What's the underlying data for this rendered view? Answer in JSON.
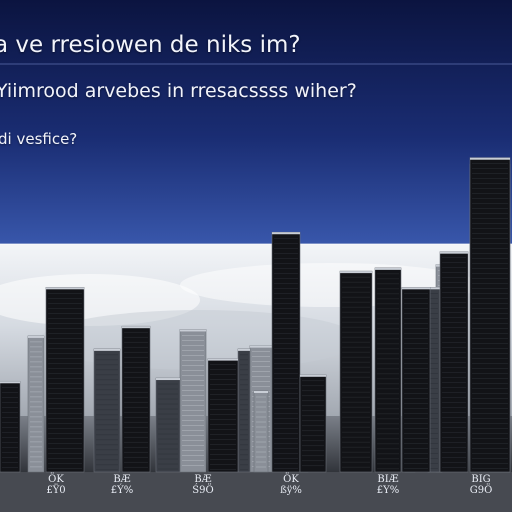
{
  "title": "a ve rresiowen de niks im?",
  "subtitle": "Yiimrood arvebes in rresacssss wiher?",
  "note": "di vesfice?",
  "colors": {
    "sky_top": "#0b1440",
    "sky_mid": "#27449a",
    "horizon": "#e6ebf2",
    "bar_dark": "#121317",
    "bar_mid": "#3a3e46",
    "bar_light": "#8a8f98"
  },
  "chart_data": {
    "type": "bar",
    "title": "a ve rresiowen de niks im?",
    "subtitle": "Yiimrood arvebes in rresacssss wiher?",
    "xlabel": "",
    "ylabel": "",
    "ylim": [
      0,
      100
    ],
    "grid": false,
    "tick_labels": [
      [
        "ÖK",
        "£Ÿ0"
      ],
      [
        "BÆ",
        "£Ý%"
      ],
      [
        "BÆ",
        "Ś9Ö"
      ],
      [
        "ÖK",
        "ßÿ%"
      ],
      [
        "BIÆ",
        "£Y%"
      ],
      [
        "BIG",
        "G9Ö"
      ]
    ],
    "values": [
      28,
      42,
      57,
      38,
      45,
      29,
      44,
      35,
      38,
      39,
      25,
      74,
      30,
      24,
      62,
      63,
      57,
      57,
      35,
      68,
      55,
      95,
      64,
      97
    ]
  }
}
